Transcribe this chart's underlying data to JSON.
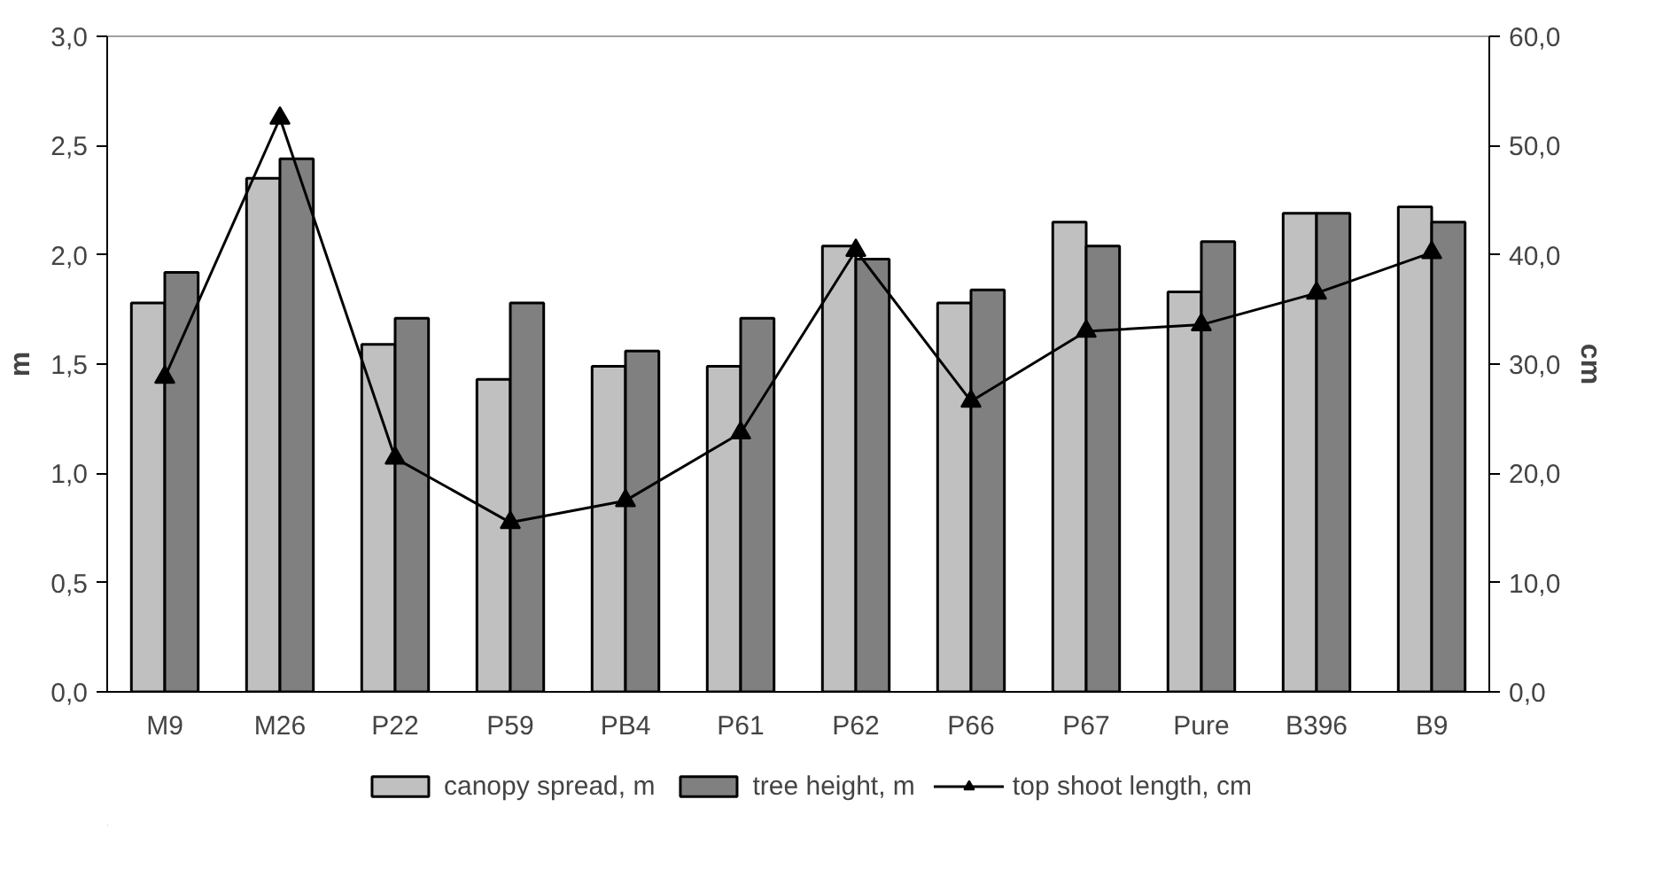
{
  "chart_data": {
    "type": "bar",
    "categories": [
      "M9",
      "M26",
      "P22",
      "P59",
      "PB4",
      "P61",
      "P62",
      "P66",
      "P67",
      "Pure",
      "B396",
      "B9"
    ],
    "series": [
      {
        "name": "canopy spread, m",
        "color": "#c0c0c0",
        "values": [
          1.78,
          2.35,
          1.59,
          1.43,
          1.49,
          1.49,
          2.04,
          1.78,
          2.15,
          1.83,
          2.19,
          2.22
        ]
      },
      {
        "name": "tree height, m",
        "color": "#808080",
        "values": [
          1.92,
          2.44,
          1.71,
          1.78,
          1.56,
          1.71,
          1.98,
          1.84,
          2.04,
          2.06,
          2.19,
          2.15
        ]
      },
      {
        "name": "top shoot length, cm",
        "type": "line",
        "axis": "y2",
        "color": "#000000",
        "marker": "triangle",
        "values": [
          28.8,
          52.5,
          21.4,
          15.5,
          17.5,
          23.7,
          40.4,
          26.6,
          33.0,
          33.6,
          36.5,
          40.2
        ]
      }
    ],
    "ylabel": "m",
    "y2label": "cm",
    "ylim": [
      0,
      3.0
    ],
    "yticks": [
      {
        "value": 0,
        "label": "0,0"
      },
      {
        "value": 0.5,
        "label": "0,5"
      },
      {
        "value": 1.0,
        "label": "1,0"
      },
      {
        "value": 1.5,
        "label": "1,5"
      },
      {
        "value": 2.0,
        "label": "2,0"
      },
      {
        "value": 2.5,
        "label": "2,5"
      },
      {
        "value": 3.0,
        "label": "3,0"
      }
    ],
    "y2lim": [
      0,
      60.0
    ],
    "y2ticks": [
      {
        "value": 0,
        "label": "0,0"
      },
      {
        "value": 10,
        "label": "10,0"
      },
      {
        "value": 20,
        "label": "20,0"
      },
      {
        "value": 30,
        "label": "30,0"
      },
      {
        "value": 40,
        "label": "40,0"
      },
      {
        "value": 50,
        "label": "50,0"
      },
      {
        "value": 60,
        "label": "60,0"
      }
    ],
    "legend": "bottom",
    "grid": false
  }
}
